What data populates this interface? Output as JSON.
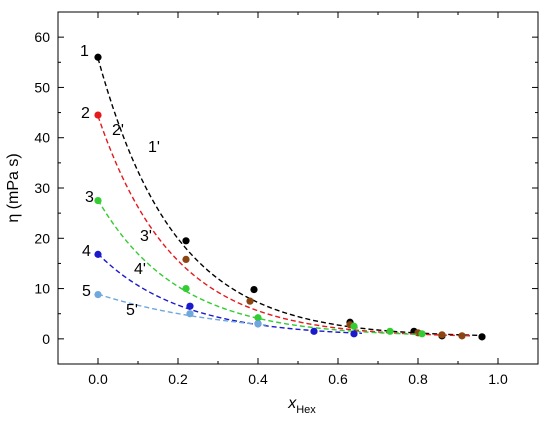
{
  "chart_data": {
    "type": "scatter",
    "title": "",
    "xlabel": "x",
    "xlabel_sub": "Hex",
    "ylabel": "η (mPa s)",
    "xlim": [
      -0.1,
      1.1
    ],
    "ylim": [
      -5,
      65
    ],
    "xticks": [
      0.0,
      0.2,
      0.4,
      0.6,
      0.8,
      1.0
    ],
    "xtick_labels": [
      "0.0",
      "0.2",
      "0.4",
      "0.6",
      "0.8",
      "1.0"
    ],
    "yticks": [
      0,
      10,
      20,
      30,
      40,
      50,
      60
    ],
    "ytick_labels": [
      "0",
      "10",
      "20",
      "30",
      "40",
      "50",
      "60"
    ],
    "grid": false,
    "legend": "none",
    "series": [
      {
        "label": "1",
        "fit_label": "1'",
        "color": "#000000",
        "x": [
          0.0,
          0.22,
          0.39,
          0.63,
          0.79,
          0.86,
          0.96
        ],
        "y": [
          56.0,
          19.5,
          9.8,
          3.3,
          1.5,
          0.6,
          0.4
        ],
        "fit": {
          "a": 55.5,
          "k": 5.2,
          "c": 0.3,
          "x_end": 0.96
        }
      },
      {
        "label": "2",
        "fit_label": "2'",
        "color": "#e41a1c",
        "x": [
          0.0,
          0.22,
          0.38,
          0.63,
          0.8,
          0.86,
          0.91
        ],
        "y": [
          44.5,
          15.8,
          7.5,
          2.8,
          1.2,
          0.8,
          0.6
        ],
        "fit": {
          "a": 44.0,
          "k": 5.3,
          "c": 0.3,
          "x_end": 0.93
        },
        "fill_points": [
          {
            "x": 0.22,
            "y": 15.8,
            "color": "#8b4513"
          },
          {
            "x": 0.38,
            "y": 7.5,
            "color": "#8b4513"
          },
          {
            "x": 0.63,
            "y": 2.8,
            "color": "#8b4513"
          },
          {
            "x": 0.8,
            "y": 1.2,
            "color": "#8b4513"
          },
          {
            "x": 0.86,
            "y": 0.8,
            "color": "#8b4513"
          },
          {
            "x": 0.91,
            "y": 0.6,
            "color": "#8b4513"
          }
        ]
      },
      {
        "label": "3",
        "fit_label": "3'",
        "color": "#33cc33",
        "x": [
          0.0,
          0.22,
          0.4,
          0.64,
          0.73,
          0.81
        ],
        "y": [
          27.5,
          10.0,
          4.2,
          2.5,
          1.5,
          1.0
        ],
        "fit": {
          "a": 27.2,
          "k": 5.0,
          "c": 0.4,
          "x_end": 0.82
        }
      },
      {
        "label": "4",
        "fit_label": "4'",
        "color": "#1a1acc",
        "x": [
          0.0,
          0.23,
          0.4,
          0.54,
          0.64
        ],
        "y": [
          16.8,
          6.5,
          3.0,
          1.5,
          1.0
        ],
        "fit": {
          "a": 16.5,
          "k": 4.8,
          "c": 0.4,
          "x_end": 0.66
        }
      },
      {
        "label": "5",
        "fit_label": "5'",
        "color": "#6fa8dc",
        "x": [
          0.0,
          0.23,
          0.4
        ],
        "y": [
          8.8,
          5.0,
          3.0
        ],
        "fit": {
          "a": 8.6,
          "k": 3.0,
          "c": 0.3,
          "x_end": 0.42
        }
      }
    ]
  }
}
